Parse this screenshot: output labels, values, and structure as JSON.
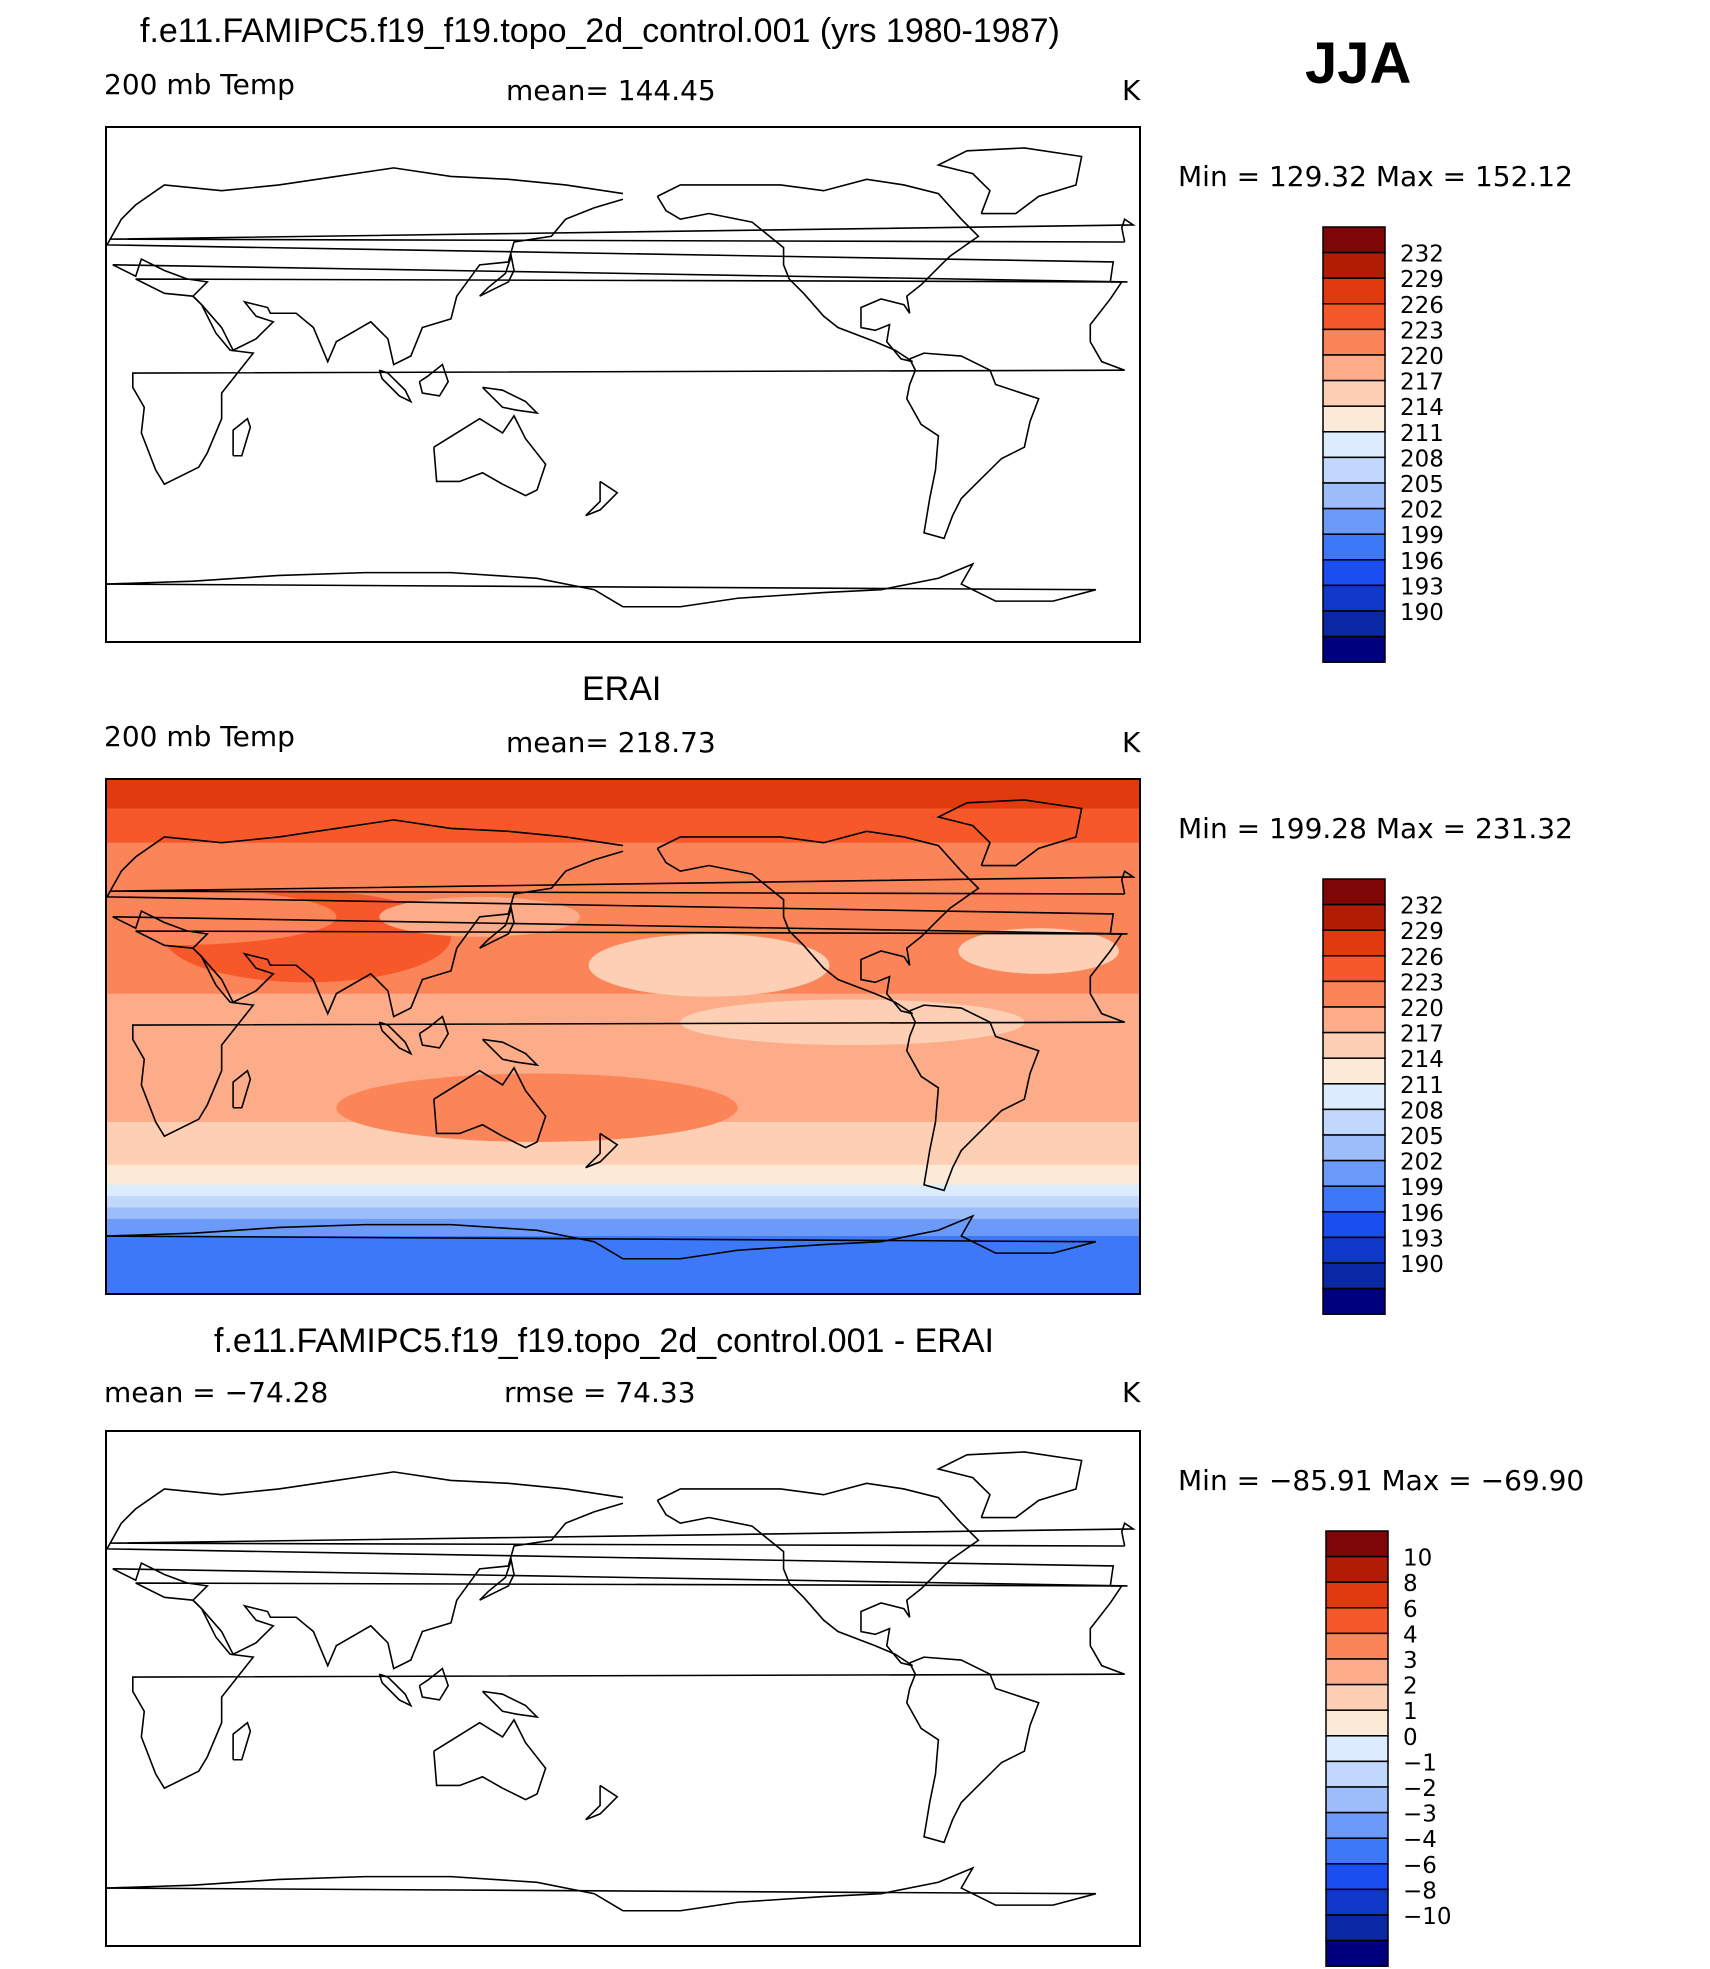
{
  "season": "JJA",
  "colors": [
    "#00007f",
    "#0a28a3",
    "#0f37c8",
    "#1a4ef0",
    "#3c78f7",
    "#6b9af8",
    "#9cbdfa",
    "#c1d8fc",
    "#dcebfd",
    "#fcead8",
    "#fdcfb4",
    "#fcac89",
    "#fb8458",
    "#f7582a",
    "#e13a0f",
    "#b11d04",
    "#7e0606"
  ],
  "panels": [
    {
      "title": "f.e11.FAMIPC5.f19_f19.topo_2d_control.001 (yrs 1980-1987)",
      "left": "200 mb Temp",
      "middle": "mean=  144.45",
      "units": "K",
      "minmax": "Min  =  129.32  Max  =  152.12",
      "filled": false
    },
    {
      "title": "ERAI",
      "left": "200 mb Temp",
      "middle": "mean=  218.73",
      "units": "K",
      "minmax": "Min  =  199.28  Max  =  231.32",
      "filled": true
    },
    {
      "title": "f.e11.FAMIPC5.f19_f19.topo_2d_control.001 - ERAI",
      "left": "mean  =  −74.28",
      "middle": "rmse  =    74.33",
      "units": "K",
      "minmax": "Min  =  −85.91  Max  =  −69.90",
      "filled": false
    }
  ],
  "colorbars": [
    {
      "levels": [
        "232",
        "229",
        "226",
        "223",
        "220",
        "217",
        "214",
        "211",
        "208",
        "205",
        "202",
        "199",
        "196",
        "193",
        "190"
      ]
    },
    {
      "levels": [
        "232",
        "229",
        "226",
        "223",
        "220",
        "217",
        "214",
        "211",
        "208",
        "205",
        "202",
        "199",
        "196",
        "193",
        "190"
      ]
    },
    {
      "levels": [
        "10",
        "8",
        "6",
        "4",
        "3",
        "2",
        "1",
        "0",
        "−1",
        "−2",
        "−3",
        "−4",
        "−6",
        "−8",
        "−10"
      ]
    }
  ],
  "chart_data": {
    "type": "heatmap",
    "variable": "200 mb Temp",
    "units": "K",
    "season": "JJA",
    "projection_center_longitude": 180,
    "panels": [
      {
        "name": "f.e11.FAMIPC5.f19_f19.topo_2d_control.001 (yrs 1980-1987)",
        "mean": 144.45,
        "min": 129.32,
        "max": 152.12,
        "contour_levels": [
          190,
          193,
          196,
          199,
          202,
          205,
          208,
          211,
          214,
          217,
          220,
          223,
          226,
          229,
          232
        ]
      },
      {
        "name": "ERAI",
        "mean": 218.73,
        "min": 199.28,
        "max": 231.32,
        "contour_levels": [
          190,
          193,
          196,
          199,
          202,
          205,
          208,
          211,
          214,
          217,
          220,
          223,
          226,
          229,
          232
        ]
      },
      {
        "name": "f.e11.FAMIPC5.f19_f19.topo_2d_control.001 - ERAI",
        "mean": -74.28,
        "rmse": 74.33,
        "min": -85.91,
        "max": -69.9,
        "contour_levels": [
          -10,
          -8,
          -6,
          -4,
          -3,
          -2,
          -1,
          0,
          1,
          2,
          3,
          4,
          6,
          8,
          10
        ]
      }
    ],
    "erai_zonal_bands": [
      {
        "lat_from": 90,
        "lat_to": 80,
        "value": 229
      },
      {
        "lat_from": 80,
        "lat_to": 68,
        "value": 226
      },
      {
        "lat_from": 68,
        "lat_to": 45,
        "value": 223
      },
      {
        "lat_from": 45,
        "lat_to": 15,
        "value": 223
      },
      {
        "lat_from": 15,
        "lat_to": 0,
        "value": 220
      },
      {
        "lat_from": 0,
        "lat_to": -30,
        "value": 220
      },
      {
        "lat_from": -30,
        "lat_to": -45,
        "value": 217
      },
      {
        "lat_from": -45,
        "lat_to": -52,
        "value": 214
      },
      {
        "lat_from": -52,
        "lat_to": -56,
        "value": 211
      },
      {
        "lat_from": -56,
        "lat_to": -60,
        "value": 208
      },
      {
        "lat_from": -60,
        "lat_to": -64,
        "value": 205
      },
      {
        "lat_from": -64,
        "lat_to": -70,
        "value": 202
      },
      {
        "lat_from": -70,
        "lat_to": -90,
        "value": 199
      }
    ]
  }
}
